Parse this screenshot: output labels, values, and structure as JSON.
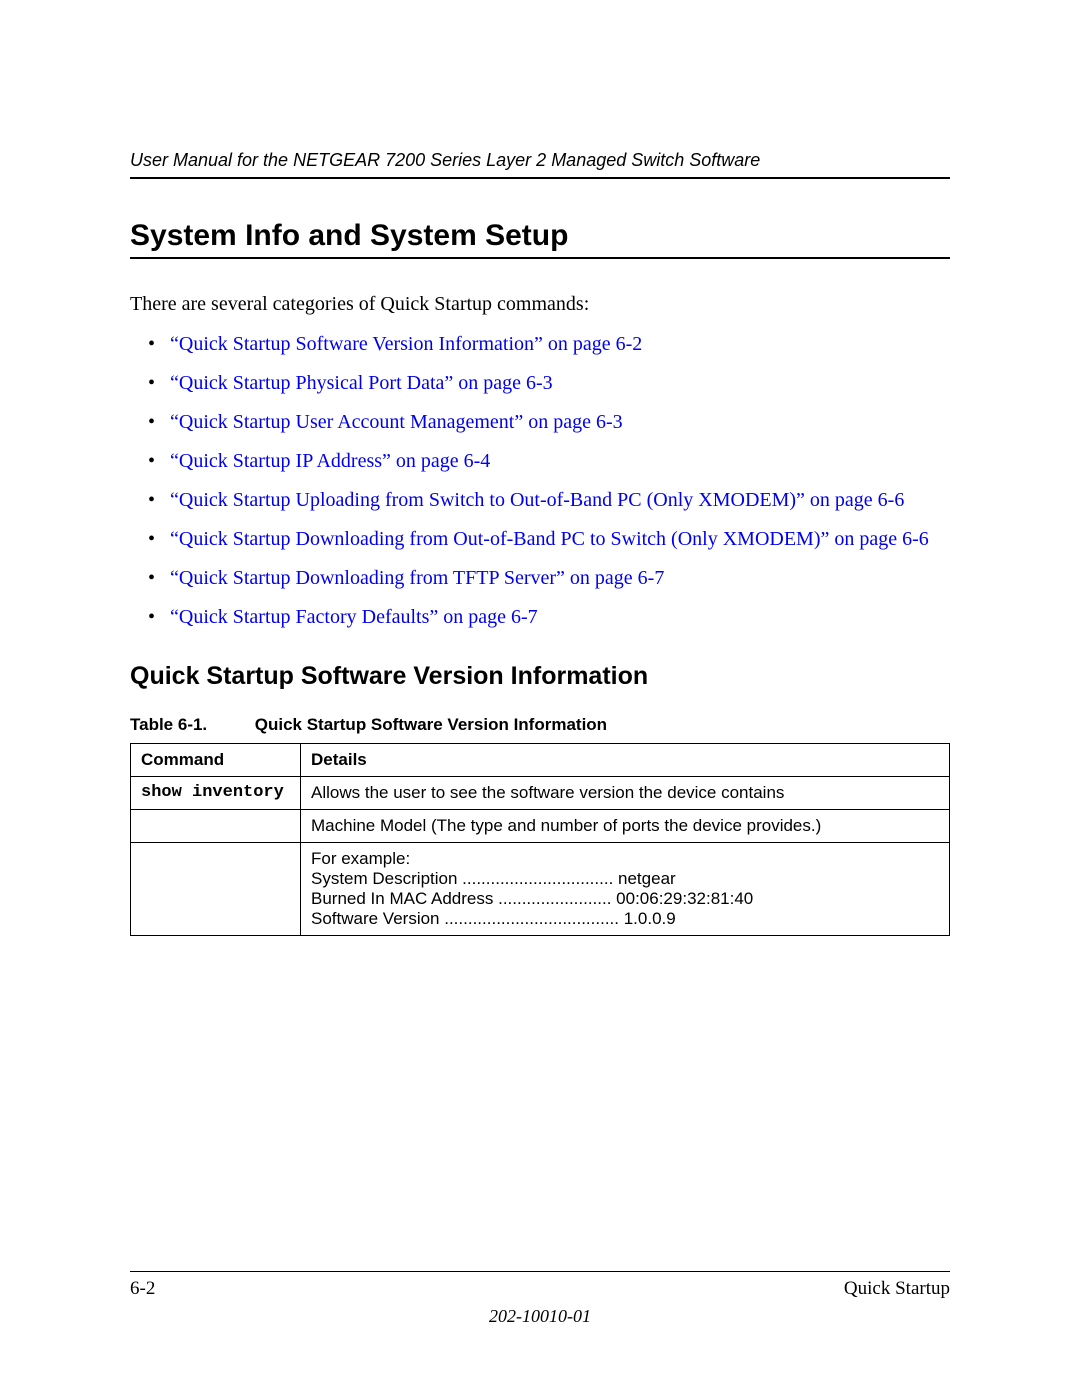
{
  "colors": {
    "text": "#000000",
    "link": "#0000ee",
    "rule": "#000000",
    "background": "#ffffff"
  },
  "typography": {
    "serif_family": "Times New Roman",
    "sans_family": "Arial",
    "mono_family": "Courier New",
    "running_head_pt": 18,
    "h1_pt": 30,
    "h2_pt": 25,
    "body_pt": 20,
    "table_pt": 17,
    "footer_pt": 19
  },
  "header": {
    "running_title": "User Manual for the NETGEAR 7200 Series Layer 2 Managed Switch Software"
  },
  "section": {
    "title": "System Info and System Setup",
    "intro": "There are several categories of Quick Startup commands:"
  },
  "links": [
    "“Quick Startup Software Version Information” on page 6-2",
    "“Quick Startup Physical Port Data” on page 6-3",
    "“Quick Startup User Account Management” on page 6-3",
    "“Quick Startup IP Address” on page 6-4",
    "“Quick Startup Uploading from Switch to Out-of-Band PC (Only XMODEM)” on page 6-6",
    "“Quick Startup Downloading from Out-of-Band PC to Switch (Only XMODEM)” on page 6-6",
    "“Quick Startup Downloading from TFTP Server” on page 6-7",
    "“Quick Startup Factory Defaults” on page 6-7"
  ],
  "subsection": {
    "title": "Quick Startup Software Version Information"
  },
  "table": {
    "caption_label": "Table 6-1.",
    "caption_title": "Quick Startup Software Version Information",
    "columns": [
      "Command",
      "Details"
    ],
    "col_widths": [
      "170px",
      "auto"
    ],
    "rows": [
      {
        "command": "show inventory",
        "details": "Allows the user to see the software version the device contains"
      },
      {
        "command": "",
        "details": "Machine Model (The type and number of ports the device provides.)"
      }
    ],
    "example": {
      "lead": "For example:",
      "lines": [
        "System Description ................................ netgear",
        "Burned In MAC Address ........................ 00:06:29:32:81:40",
        "Software Version ..................................... 1.0.0.9"
      ]
    }
  },
  "footer": {
    "left": "6-2",
    "right": "Quick Startup",
    "center": "202-10010-01"
  }
}
